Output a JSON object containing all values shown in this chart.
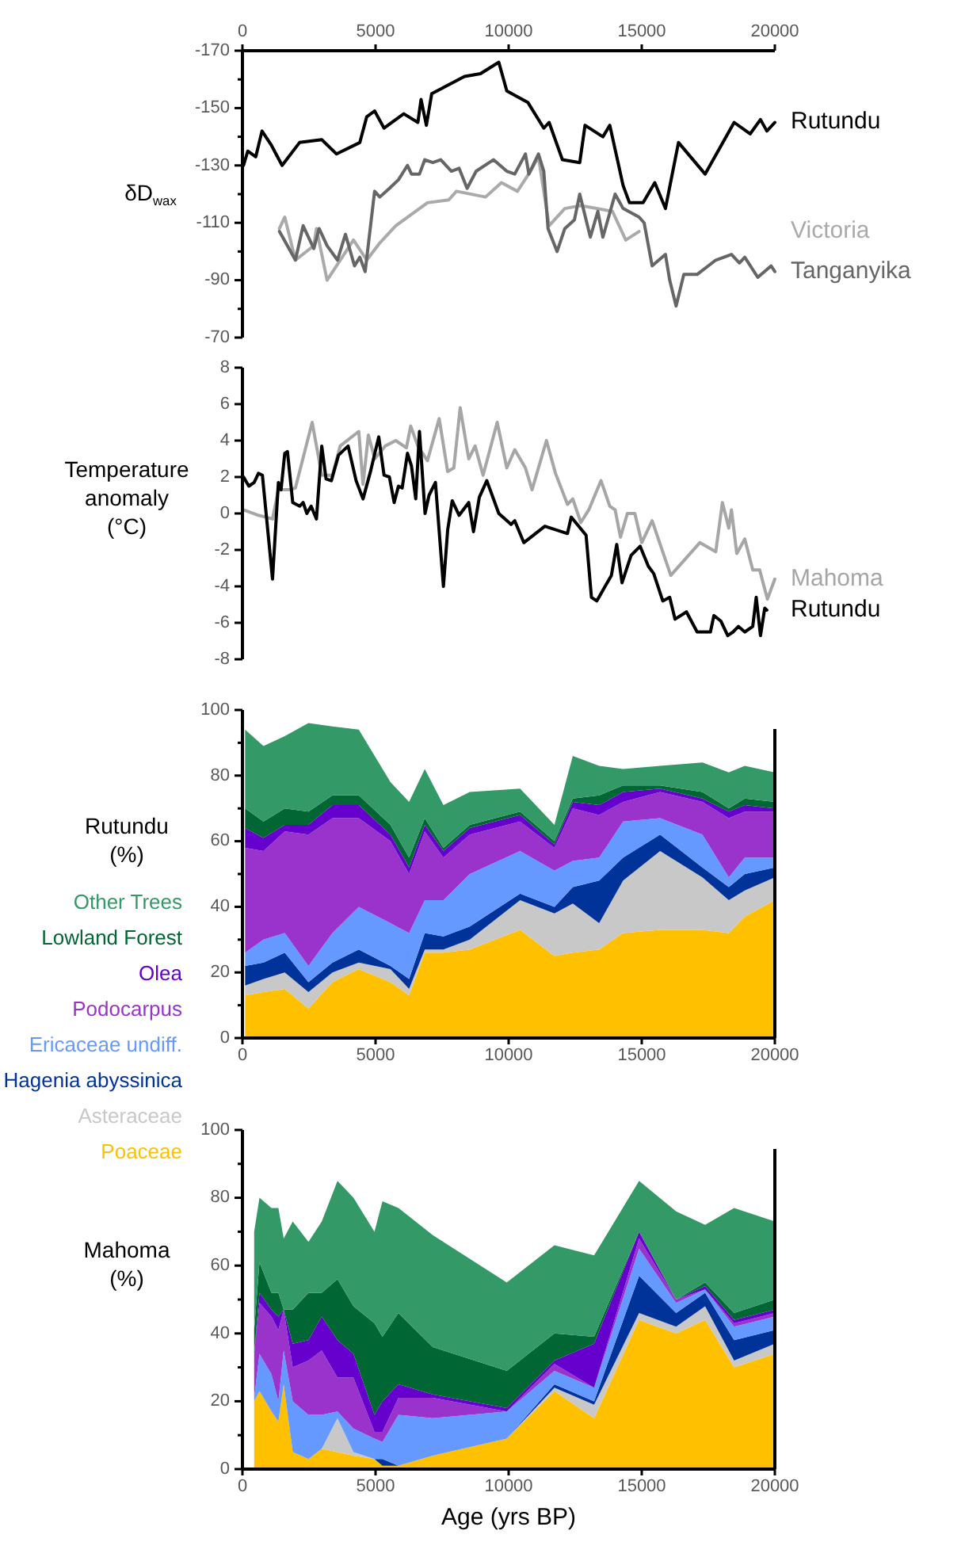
{
  "chart_data": [
    {
      "type": "line",
      "ylabel": "δD$_{wax}$",
      "xlim": [
        0,
        20000
      ],
      "xticks": [
        0,
        5000,
        10000,
        15000,
        20000
      ],
      "ylim": [
        -70,
        -170
      ],
      "yticks": [
        -170,
        {
          "value": -160,
          "label": null
        },
        -150,
        {
          "value": -140,
          "label": null
        },
        -130,
        {
          "value": -120,
          "label": null
        },
        -110,
        {
          "value": -100,
          "label": null
        },
        -90,
        {
          "value": -80,
          "label": null
        },
        -70
      ],
      "series": [
        {
          "name": "Rutundu",
          "color": "#000000",
          "x": [
            40,
            200,
            500,
            735,
            1090,
            1490,
            2145,
            2980,
            3535,
            4410,
            4670,
            4965,
            5320,
            6060,
            6590,
            6710,
            6910,
            7110,
            8340,
            8940,
            9630,
            9930,
            10720,
            11320,
            11520,
            12020,
            12670,
            12870,
            13540,
            13800,
            14300,
            14540,
            15050,
            15490,
            15890,
            16380,
            17380,
            18470,
            19070,
            19460,
            19700,
            20000
          ],
          "values": [
            -130,
            -135,
            -133,
            -142,
            -137,
            -130,
            -138,
            -139,
            -134,
            -138,
            -147,
            -149,
            -143,
            -148,
            -145,
            -153,
            -144,
            -155,
            -161,
            -162,
            -166,
            -156,
            -152,
            -143,
            -145,
            -132,
            -131,
            -144,
            -140,
            -144,
            -123,
            -117,
            -117,
            -124,
            -115,
            -138,
            -127,
            -145,
            -141,
            -146,
            -142,
            -145
          ]
        },
        {
          "name": "Victoria",
          "color": "#aaaaaa",
          "x": [
            1390,
            1590,
            1990,
            2680,
            2780,
            3180,
            4170,
            4670,
            5160,
            5760,
            6950,
            7750,
            8040,
            9130,
            9730,
            10330,
            10820,
            11120,
            11520,
            12110,
            12710,
            13900,
            14400,
            14900
          ],
          "values": [
            -108,
            -112,
            -97,
            -102,
            -108,
            -90,
            -104,
            -97,
            -103,
            -109,
            -117,
            -118,
            -121,
            -119,
            -124,
            -121,
            -128,
            -133,
            -109,
            -115,
            -116,
            -114,
            -104,
            -107
          ]
        },
        {
          "name": "Tanganyika",
          "color": "#666666",
          "x": [
            1390,
            1990,
            2280,
            2680,
            2880,
            3180,
            3570,
            3870,
            4210,
            4410,
            4610,
            4965,
            5160,
            5520,
            5860,
            6200,
            6350,
            6650,
            6850,
            7150,
            7450,
            7850,
            8140,
            8440,
            8780,
            9430,
            9930,
            10230,
            10630,
            10760,
            11120,
            11320,
            11480,
            11820,
            12110,
            12470,
            12670,
            13070,
            13350,
            13540,
            14000,
            14300,
            14900,
            15090,
            15390,
            15890,
            16050,
            16290,
            16580,
            17080,
            17780,
            18370,
            18670,
            18870,
            19360,
            19860,
            20000
          ],
          "values": [
            -107,
            -97,
            -109,
            -101,
            -108,
            -102,
            -97,
            -106,
            -95,
            -98,
            -93,
            -121,
            -119,
            -122,
            -125,
            -130,
            -127,
            -127,
            -132,
            -131,
            -132,
            -128,
            -129,
            -122,
            -128,
            -132,
            -128,
            -127,
            -134,
            -127,
            -134,
            -128,
            -108,
            -100,
            -108,
            -111,
            -120,
            -105,
            -114,
            -105,
            -120,
            -115,
            -112,
            -110,
            -95,
            -99,
            -90,
            -81,
            -92,
            -92,
            -97,
            -99,
            -96,
            -98,
            -91,
            -95,
            -93
          ]
        }
      ]
    },
    {
      "type": "line",
      "ylabel": "Temperature anomaly (°C)",
      "tick_labels": "y",
      "xlim": [
        0,
        20000
      ],
      "ylim": [
        -8,
        8
      ],
      "yticks": [
        -8,
        -6,
        -4,
        -2,
        0,
        2,
        4,
        6,
        8
      ],
      "series": [
        {
          "name": "Mahoma",
          "color": "#a6a6a6",
          "x": [
            40,
            600,
            1130,
            1350,
            1750,
            1990,
            2620,
            2980,
            3380,
            3670,
            4370,
            4530,
            4730,
            4970,
            5360,
            5760,
            6160,
            6320,
            6590,
            6950,
            7390,
            7710,
            7940,
            8180,
            8500,
            8740,
            9040,
            9570,
            9930,
            10230,
            10630,
            10880,
            11420,
            11760,
            12210,
            12410,
            12710,
            13010,
            13470,
            13800,
            14000,
            14200,
            14460,
            14740,
            15000,
            15390,
            16090,
            17180,
            17780,
            18030,
            18270,
            18370,
            18570,
            18870,
            19170,
            19430,
            19720,
            20000
          ],
          "values": [
            0.2,
            -0.1,
            -0.3,
            1.3,
            1.3,
            1.4,
            5.0,
            2.1,
            2.1,
            3.7,
            4.5,
            1.6,
            4.3,
            3.0,
            3.7,
            4.0,
            3.6,
            4.8,
            3.7,
            2.9,
            5.2,
            2.3,
            2.5,
            5.8,
            3.0,
            3.7,
            2.1,
            5.0,
            2.5,
            3.5,
            2.5,
            1.3,
            4.0,
            2.2,
            0.5,
            0.8,
            -0.5,
            0.2,
            1.8,
            0.4,
            0.2,
            -1.3,
            0.0,
            0.0,
            -1.6,
            -0.4,
            -3.4,
            -1.6,
            -2.1,
            0.6,
            -0.8,
            0.2,
            -2.2,
            -1.4,
            -3.1,
            -3.1,
            -4.7,
            -3.6
          ]
        },
        {
          "name": "Rutundu",
          "color": "#000000",
          "x": [
            40,
            240,
            440,
            600,
            750,
            1130,
            1350,
            1450,
            1590,
            1690,
            1890,
            2150,
            2280,
            2420,
            2580,
            2780,
            2980,
            3140,
            3340,
            3610,
            3970,
            4270,
            4530,
            4810,
            5120,
            5320,
            5520,
            5700,
            5860,
            6000,
            6200,
            6350,
            6510,
            6650,
            6860,
            7010,
            7250,
            7550,
            7710,
            7880,
            8140,
            8500,
            8680,
            8900,
            9180,
            9630,
            10090,
            10230,
            10570,
            11360,
            12210,
            12350,
            12910,
            13110,
            13310,
            13860,
            14060,
            14260,
            14600,
            14940,
            15250,
            15450,
            15790,
            16050,
            16250,
            16680,
            17080,
            17580,
            17710,
            17970,
            18230,
            18430,
            18630,
            18870,
            19170,
            19300,
            19460,
            19620,
            19700
          ],
          "values": [
            2.0,
            1.5,
            1.7,
            2.2,
            2.1,
            -3.6,
            1.7,
            1.3,
            3.3,
            3.4,
            0.6,
            0.4,
            0.6,
            0.0,
            0.4,
            -0.3,
            3.7,
            1.9,
            1.8,
            3.2,
            3.7,
            1.8,
            0.8,
            2.3,
            4.2,
            2.1,
            2.0,
            0.6,
            1.5,
            1.4,
            3.3,
            2.6,
            0.8,
            4.5,
            0.0,
            1.0,
            1.7,
            -4.0,
            -0.9,
            0.7,
            -0.1,
            0.6,
            -1.0,
            0.9,
            1.8,
            0.0,
            -0.6,
            -0.4,
            -1.6,
            -0.7,
            -1.1,
            -0.2,
            -1.2,
            -4.6,
            -4.8,
            -3.4,
            -1.7,
            -3.8,
            -2.3,
            -1.8,
            -2.9,
            -3.3,
            -4.8,
            -4.6,
            -5.8,
            -5.4,
            -6.5,
            -6.5,
            -5.6,
            -5.9,
            -6.7,
            -6.5,
            -6.2,
            -6.5,
            -6.2,
            -4.6,
            -6.7,
            -5.2,
            -5.3
          ]
        }
      ]
    },
    {
      "type": "area",
      "stacked": true,
      "legend": "left",
      "ylabel": "Rutundu (%)",
      "xlim": [
        0,
        20000
      ],
      "xticks": [
        0,
        5000,
        10000,
        15000,
        20000
      ],
      "ylim": [
        0,
        100
      ],
      "yticks": [
        0,
        {
          "value": 10,
          "label": null
        },
        20,
        {
          "value": 30,
          "label": null
        },
        40,
        {
          "value": 50,
          "label": null
        },
        60,
        {
          "value": 70,
          "label": null
        },
        80,
        {
          "value": 90,
          "label": null
        },
        100
      ],
      "x": [
        100,
        790,
        1590,
        2480,
        3380,
        4370,
        5560,
        6260,
        6850,
        7550,
        8540,
        10430,
        11720,
        12410,
        13400,
        14300,
        15690,
        17280,
        18270,
        18870,
        20000
      ],
      "series": [
        {
          "name": "Poaceae",
          "color": "#ffc000",
          "values": [
            13,
            14,
            15,
            9,
            17,
            21,
            17,
            13,
            26,
            26,
            27,
            33,
            25,
            26,
            27,
            32,
            33,
            33,
            32,
            37,
            42
          ]
        },
        {
          "name": "Asteraceae",
          "color": "#c8c8c8",
          "values": [
            3,
            4,
            5,
            5,
            3,
            2,
            4,
            2,
            1,
            1,
            3,
            9,
            13,
            15,
            8,
            16,
            24,
            16,
            10,
            8,
            7
          ]
        },
        {
          "name": "Hagenia abyssinica",
          "color": "#003399",
          "values": [
            6,
            5,
            6,
            3,
            3,
            4,
            1,
            3,
            5,
            4,
            4,
            2,
            2,
            5,
            13,
            7,
            5,
            3,
            4,
            5,
            3
          ]
        },
        {
          "name": "Ericaceae undiff.",
          "color": "#6699ff",
          "values": [
            4,
            7,
            6,
            5,
            9,
            13,
            13,
            14,
            10,
            11,
            16,
            13,
            11,
            8,
            7,
            11,
            5,
            10,
            3,
            5,
            3
          ]
        },
        {
          "name": "Podocarpus",
          "color": "#9933cc",
          "values": [
            32,
            27,
            31,
            40,
            35,
            27,
            25,
            18,
            21,
            13,
            12,
            9,
            7,
            16,
            13,
            6,
            8,
            10,
            18,
            14,
            14
          ]
        },
        {
          "name": "Olea",
          "color": "#6600cc",
          "values": [
            6,
            4,
            2,
            3,
            4,
            4,
            2,
            2,
            2,
            2,
            2,
            2,
            1,
            2,
            3,
            3,
            1,
            1,
            2,
            2,
            1
          ]
        },
        {
          "name": "Lowland Forest",
          "color": "#006633",
          "values": [
            6,
            5,
            5,
            4,
            3,
            3,
            3,
            3,
            2,
            1,
            1,
            1,
            1,
            1,
            3,
            2,
            1,
            2,
            1,
            2,
            2
          ]
        },
        {
          "name": "Other Trees",
          "color": "#339966",
          "values": [
            24,
            23,
            22,
            27,
            21,
            20,
            13,
            17,
            15,
            13,
            10,
            7,
            5,
            13,
            9,
            5,
            6,
            9,
            11,
            10,
            9
          ]
        }
      ]
    },
    {
      "type": "area",
      "stacked": true,
      "ylabel": "Mahoma (%)",
      "xlabel": "Age (yrs BP)",
      "xlim": [
        0,
        20000
      ],
      "xticks": [
        0,
        5000,
        10000,
        15000,
        20000
      ],
      "ylim": [
        0,
        100
      ],
      "yticks": [
        0,
        {
          "value": 10,
          "label": null
        },
        20,
        {
          "value": 30,
          "label": null
        },
        40,
        {
          "value": 50,
          "label": null
        },
        60,
        {
          "value": 70,
          "label": null
        },
        80,
        {
          "value": 90,
          "label": null
        },
        100
      ],
      "x": [
        440,
        640,
        1090,
        1350,
        1550,
        1890,
        2480,
        2980,
        3570,
        4170,
        4960,
        5260,
        5860,
        7150,
        9930,
        11720,
        13210,
        14900,
        16290,
        17380,
        18470,
        20000
      ],
      "series": [
        {
          "color": "#ffc000",
          "values": [
            20,
            23,
            17,
            14,
            25,
            5,
            3,
            6,
            5,
            4,
            3,
            1,
            1,
            4,
            9,
            23,
            15,
            44,
            40,
            44,
            30,
            34
          ]
        },
        {
          "color": "#c8c8c8",
          "values": [
            0,
            0,
            0,
            0,
            0,
            0,
            0,
            0,
            10,
            1,
            0,
            0,
            0,
            0,
            0,
            1,
            4,
            2,
            2,
            4,
            2,
            3
          ]
        },
        {
          "color": "#003399",
          "values": [
            0,
            0,
            0,
            0,
            0,
            0,
            0,
            0,
            0,
            0,
            0,
            2,
            0,
            0,
            0,
            1,
            1,
            11,
            4,
            4,
            6,
            4
          ]
        },
        {
          "color": "#6699ff",
          "values": [
            1,
            11,
            11,
            6,
            10,
            15,
            13,
            10,
            2,
            7,
            6,
            5,
            15,
            11,
            8,
            4,
            4,
            8,
            3,
            1,
            4,
            4
          ]
        },
        {
          "color": "#9933cc",
          "values": [
            13,
            15,
            17,
            21,
            12,
            10,
            16,
            19,
            10,
            15,
            2,
            3,
            5,
            6,
            0,
            2,
            0,
            3,
            1,
            0,
            1,
            1
          ]
        },
        {
          "color": "#6600cc",
          "values": [
            0,
            3,
            2,
            4,
            0,
            7,
            6,
            10,
            11,
            7,
            5,
            9,
            4,
            1,
            1,
            1,
            13,
            2,
            0,
            1,
            1,
            1
          ]
        },
        {
          "color": "#006633",
          "values": [
            7,
            9,
            5,
            7,
            0,
            10,
            14,
            7,
            18,
            14,
            27,
            19,
            21,
            14,
            11,
            8,
            2,
            0,
            0,
            1,
            2,
            3
          ]
        },
        {
          "color": "#339966",
          "values": [
            29,
            19,
            25,
            25,
            21,
            26,
            15,
            21,
            29,
            32,
            27,
            40,
            31,
            33,
            26,
            26,
            24,
            15,
            26,
            17,
            31,
            23
          ]
        }
      ]
    }
  ]
}
